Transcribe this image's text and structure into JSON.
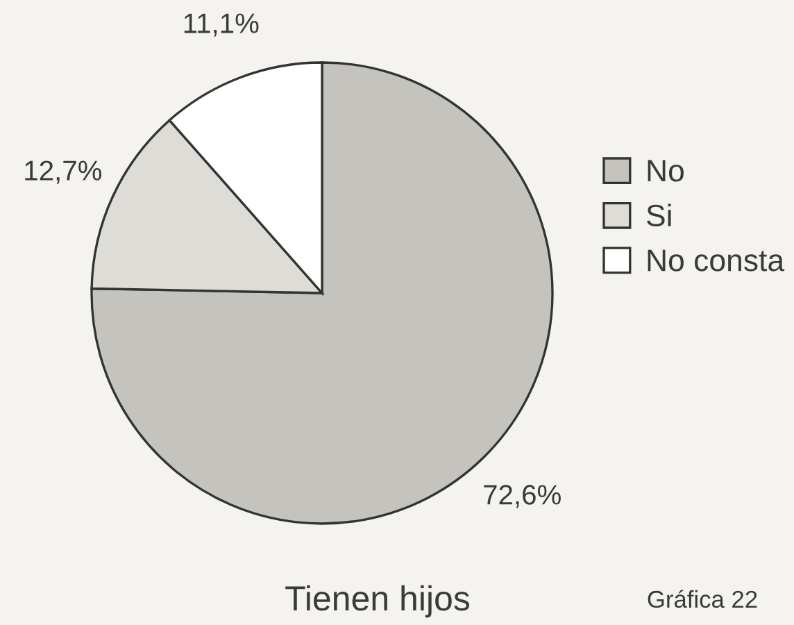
{
  "chart_data": {
    "type": "pie",
    "title": "Tienen hijos",
    "categories": [
      "No",
      "Si",
      "No consta"
    ],
    "values": [
      72.6,
      12.7,
      11.1
    ],
    "value_labels": [
      "72,6%",
      "12,7%",
      "11,1%"
    ],
    "colors": [
      "#c4c3be",
      "#dedcd6",
      "#ffffff"
    ],
    "legend": "right",
    "annotations": [
      "Gráfica 22"
    ]
  }
}
